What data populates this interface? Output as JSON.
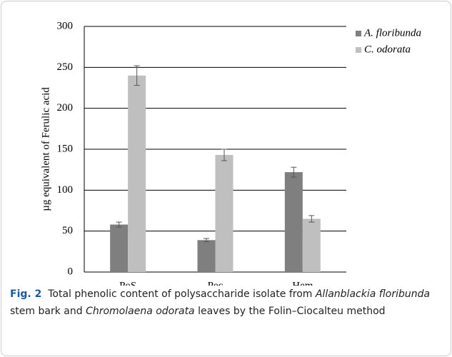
{
  "chart_data": {
    "type": "bar",
    "categories": [
      "PoS",
      "Pec",
      "Hem"
    ],
    "series": [
      {
        "name": "A. floribunda",
        "color": "#7f7f7f",
        "values": [
          58,
          39,
          122
        ],
        "errors": [
          3,
          2,
          6
        ]
      },
      {
        "name": "C. odorata",
        "color": "#bfbfbf",
        "values": [
          240,
          143,
          65
        ],
        "errors": [
          12,
          7,
          4
        ]
      }
    ],
    "y_label": "µg equivalent of Ferulic acid",
    "ylim": [
      0,
      300
    ],
    "yticks": [
      0,
      50,
      100,
      150,
      200,
      250,
      300
    ],
    "grid": true,
    "legend": "right"
  },
  "caption": {
    "label": "Fig. 2",
    "parts": [
      "Total phenolic content of polysaccharide isolate from ",
      "Allanblackia floribunda",
      " stem bark and ",
      "Chromolaena odorata",
      " leaves by the Folin–Ciocalteu method"
    ]
  }
}
